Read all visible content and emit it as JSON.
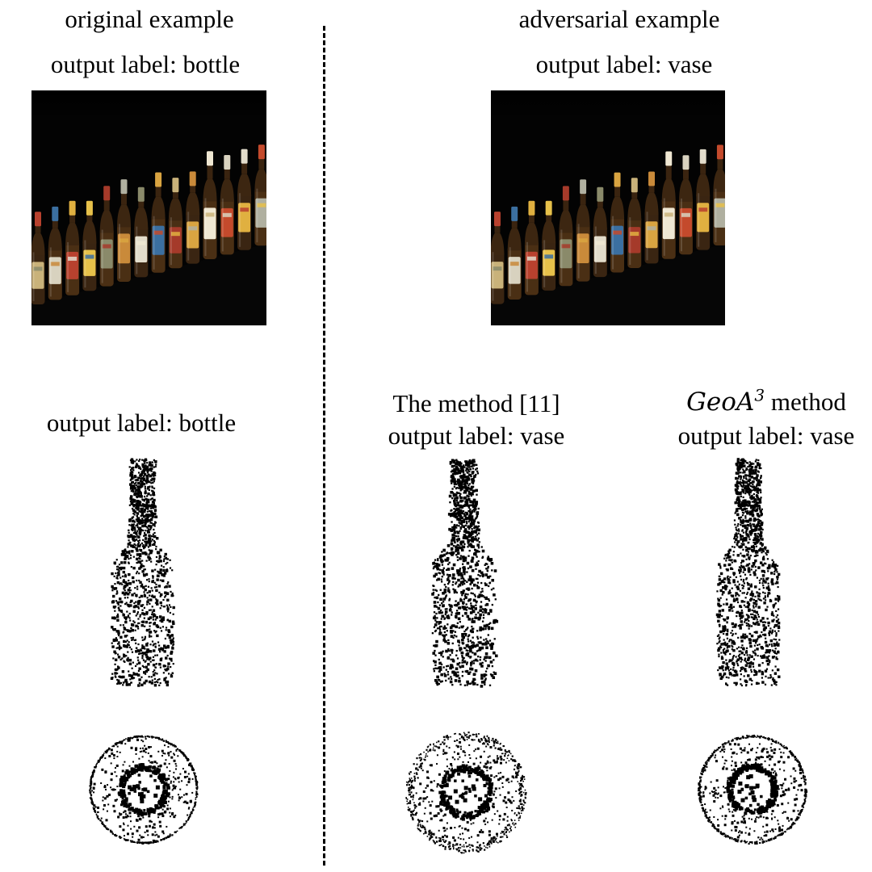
{
  "headings": {
    "original": "original example",
    "adversarial": "adversarial example"
  },
  "labels": {
    "original_image": "output label: bottle",
    "adversarial_image": "output label: vase",
    "original_cloud": "output label: bottle",
    "method11_title": "The method [11]",
    "method11_label": "output label: vase",
    "geoa3_method_word": "method",
    "geoa3_label": "output label: vase"
  },
  "formula": {
    "geo_name": "GeoA",
    "geo_sup": "3"
  },
  "colors": {
    "background": "#ffffff",
    "ink": "#000000",
    "photo_bg": "#000000"
  }
}
